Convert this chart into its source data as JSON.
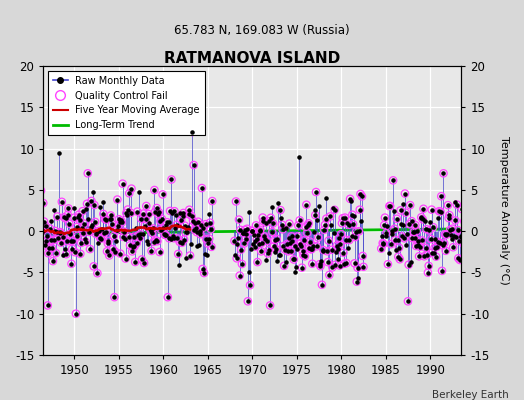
{
  "title": "RATMANOVA ISLAND",
  "subtitle": "65.783 N, 169.083 W (Russia)",
  "ylabel": "Temperature Anomaly (°C)",
  "credit": "Berkeley Earth",
  "year_start": 1946,
  "year_end": 1993,
  "ylim": [
    -15,
    20
  ],
  "yticks": [
    -15,
    -10,
    -5,
    0,
    5,
    10,
    15,
    20
  ],
  "xticks": [
    1950,
    1955,
    1960,
    1965,
    1970,
    1975,
    1980,
    1985,
    1990
  ],
  "bg_color": "#d8d8d8",
  "plot_bg_color": "#e8e8e8",
  "grid_color": "#ffffff",
  "line_color": "#4444cc",
  "marker_color": "#000000",
  "qc_color": "#ff44ff",
  "moving_avg_color": "#cc0000",
  "trend_color": "#00bb00",
  "seed": 42,
  "gap_start": 1965.5,
  "gap_end": 1968.0,
  "gap2_start": 1982.5,
  "gap2_end": 1984.5
}
